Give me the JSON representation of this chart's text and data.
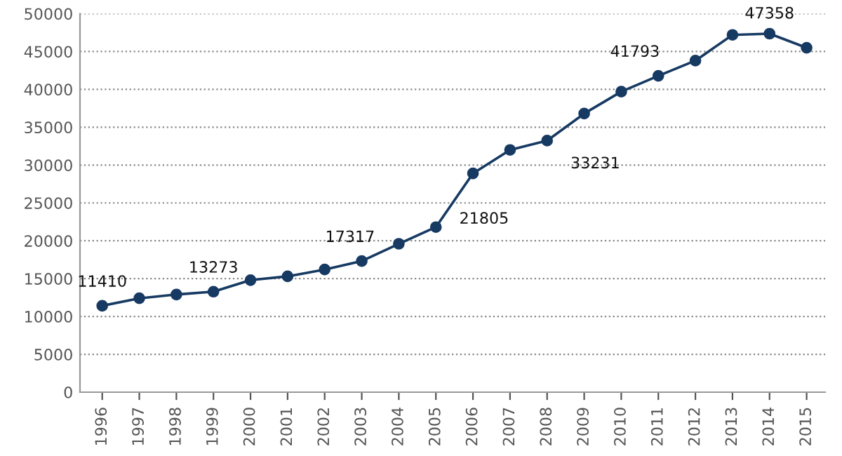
{
  "chart_data": {
    "type": "line",
    "categories": [
      "1996",
      "1997",
      "1998",
      "1999",
      "2000",
      "2001",
      "2002",
      "2003",
      "2004",
      "2005",
      "2006",
      "2007",
      "2008",
      "2009",
      "2010",
      "2011",
      "2012",
      "2013",
      "2014",
      "2015"
    ],
    "series": [
      {
        "color": "#173a63",
        "values": [
          11410,
          12400,
          12900,
          13273,
          14800,
          15300,
          16200,
          17317,
          19600,
          21805,
          28900,
          32000,
          33231,
          36800,
          39700,
          41793,
          43800,
          47200,
          47358,
          45500
        ]
      }
    ],
    "annotations": [
      {
        "text": "11410",
        "x": "1996",
        "y": 11410
      },
      {
        "text": "13273",
        "x": "1999",
        "y": 13273
      },
      {
        "text": "17317",
        "x": "2003",
        "y": 17317
      },
      {
        "text": "21805",
        "x": "2005",
        "y": 21805
      },
      {
        "text": "33231",
        "x": "2008",
        "y": 33231
      },
      {
        "text": "41793",
        "x": "2011",
        "y": 41793
      },
      {
        "text": "47358",
        "x": "2014",
        "y": 47358
      }
    ],
    "ylim": [
      0,
      50000
    ],
    "yticks": [
      0,
      5000,
      10000,
      15000,
      20000,
      25000,
      30000,
      35000,
      40000,
      45000,
      50000
    ],
    "grid": "y",
    "marker": "circle",
    "line_style": "solid"
  }
}
